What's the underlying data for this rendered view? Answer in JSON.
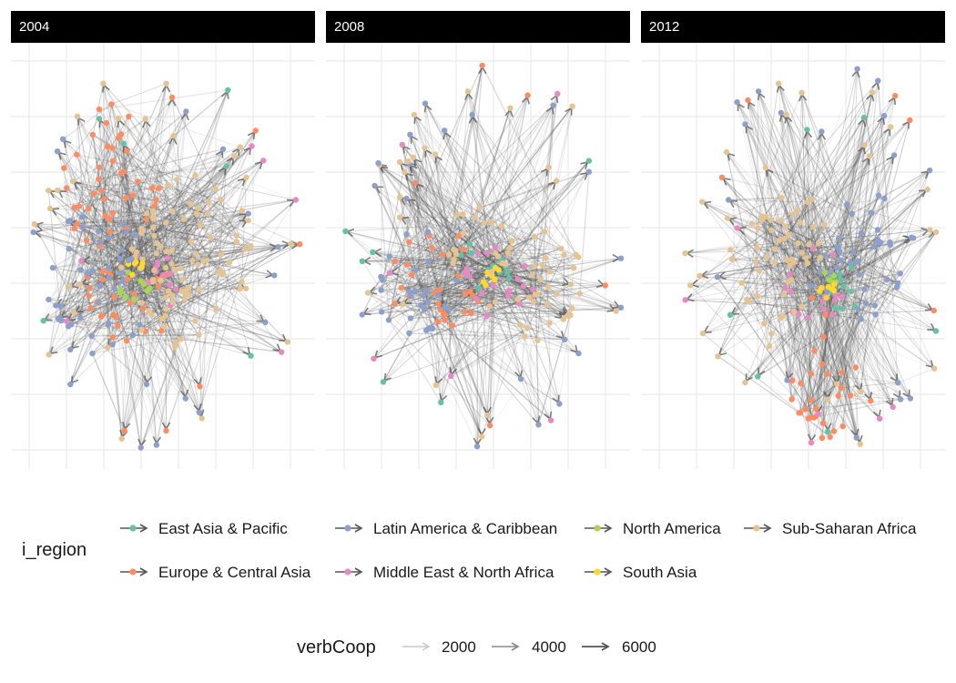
{
  "facets": [
    "2004",
    "2008",
    "2012"
  ],
  "legend": {
    "region_title": "i_region",
    "regions": [
      {
        "label": "East Asia & Pacific",
        "color": "#66c2a5"
      },
      {
        "label": "Europe & Central Asia",
        "color": "#fc8d62"
      },
      {
        "label": "Latin America & Caribbean",
        "color": "#8da0cb"
      },
      {
        "label": "Middle East & North Africa",
        "color": "#e78ac3"
      },
      {
        "label": "North America",
        "color": "#a6d854"
      },
      {
        "label": "South Asia",
        "color": "#ffd92f"
      },
      {
        "label": "Sub-Saharan Africa",
        "color": "#e5c494"
      }
    ],
    "weight_title": "verbCoop",
    "weights": [
      {
        "label": "2000",
        "color": "#c8c8c8"
      },
      {
        "label": "4000",
        "color": "#8a8a8a"
      },
      {
        "label": "6000",
        "color": "#555555"
      }
    ]
  },
  "colors": {
    "edge": "#555555",
    "strip_bg": "#000000",
    "strip_text": "#ffffff",
    "grid": "#ebebeb"
  }
}
